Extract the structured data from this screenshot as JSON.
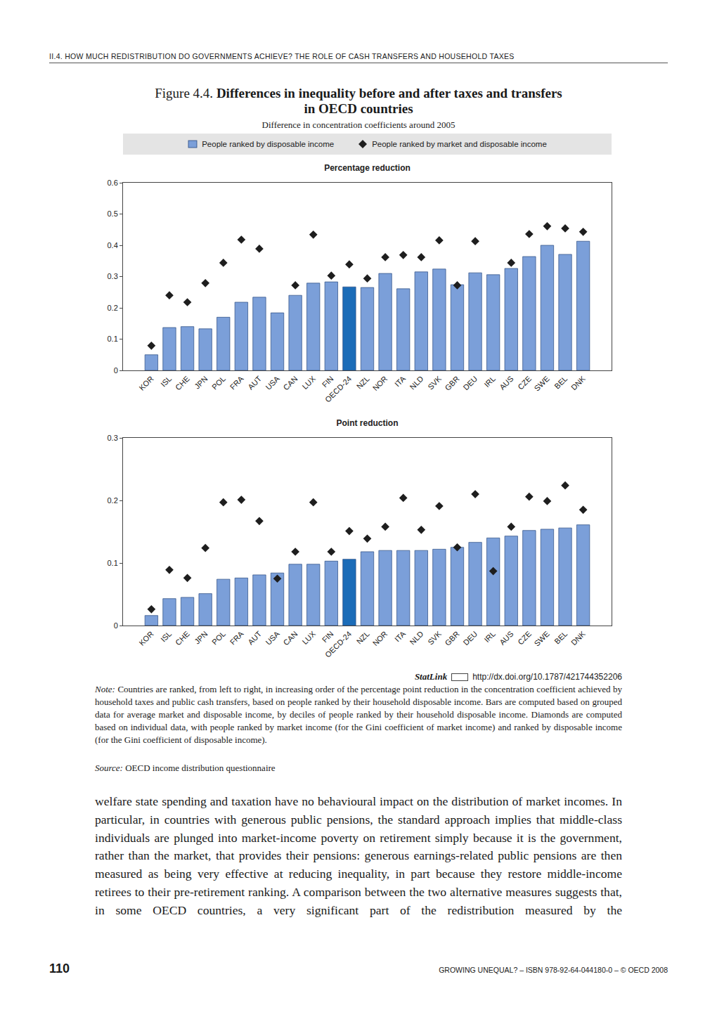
{
  "header": "II.4.   HOW MUCH REDISTRIBUTION DO GOVERNMENTS ACHIEVE? THE ROLE OF CASH TRANSFERS AND HOUSEHOLD TAXES",
  "figure": {
    "number": "Figure 4.4.",
    "title": [
      "Differences in inequality before and after taxes and transfers",
      "in OECD countries"
    ],
    "subtitle": "Difference in concentration coefficients around 2005"
  },
  "chart_data": [
    {
      "type": "bar",
      "title": "Percentage reduction",
      "categories": [
        "KOR",
        "ISL",
        "CHE",
        "JPN",
        "POL",
        "FRA",
        "AUT",
        "USA",
        "CAN",
        "LUX",
        "FIN",
        "OECD-24",
        "NZL",
        "NOR",
        "ITA",
        "NLD",
        "SVK",
        "GBR",
        "DEU",
        "IRL",
        "AUS",
        "CZE",
        "SWE",
        "BEL",
        "DNK"
      ],
      "series": [
        {
          "name": "People ranked by disposable income",
          "type": "bar",
          "values": [
            0.05,
            0.137,
            0.14,
            0.133,
            0.17,
            0.218,
            0.234,
            0.184,
            0.24,
            0.279,
            0.283,
            0.267,
            0.265,
            0.31,
            0.261,
            0.315,
            0.324,
            0.274,
            0.312,
            0.306,
            0.326,
            0.364,
            0.4,
            0.371,
            0.413
          ],
          "colors": [
            "#7b9fd9",
            "#7b9fd9",
            "#7b9fd9",
            "#7b9fd9",
            "#7b9fd9",
            "#7b9fd9",
            "#7b9fd9",
            "#7b9fd9",
            "#7b9fd9",
            "#7b9fd9",
            "#7b9fd9",
            "#1b6cb8",
            "#7b9fd9",
            "#7b9fd9",
            "#7b9fd9",
            "#7b9fd9",
            "#7b9fd9",
            "#7b9fd9",
            "#7b9fd9",
            "#7b9fd9",
            "#7b9fd9",
            "#7b9fd9",
            "#7b9fd9",
            "#7b9fd9",
            "#7b9fd9"
          ]
        },
        {
          "name": "People ranked by market and disposable income",
          "type": "scatter",
          "marker": "diamond",
          "color": "#1e1e1e",
          "values": [
            0.079,
            0.24,
            0.218,
            0.279,
            0.344,
            0.418,
            0.389,
            null,
            0.272,
            0.434,
            0.303,
            0.339,
            0.294,
            0.362,
            0.369,
            0.362,
            0.416,
            0.272,
            0.413,
            null,
            0.344,
            0.436,
            0.461,
            0.454,
            0.443
          ]
        }
      ],
      "ylim": [
        0,
        0.6
      ],
      "yticks": [
        0,
        0.1,
        0.2,
        0.3,
        0.4,
        0.5,
        0.6
      ],
      "grid": false,
      "legend": "top"
    },
    {
      "type": "bar",
      "title": "Point reduction",
      "categories": [
        "KOR",
        "ISL",
        "CHE",
        "JPN",
        "POL",
        "FRA",
        "AUT",
        "USA",
        "CAN",
        "LUX",
        "FIN",
        "OECD-24",
        "NZL",
        "NOR",
        "ITA",
        "NLD",
        "SVK",
        "GBR",
        "DEU",
        "IRL",
        "AUS",
        "CZE",
        "SWE",
        "BEL",
        "DNK"
      ],
      "series": [
        {
          "name": "People ranked by disposable income",
          "type": "bar",
          "values": [
            0.016,
            0.043,
            0.045,
            0.051,
            0.074,
            0.076,
            0.081,
            0.084,
            0.098,
            0.098,
            0.103,
            0.106,
            0.118,
            0.12,
            0.12,
            0.12,
            0.122,
            0.125,
            0.133,
            0.14,
            0.143,
            0.152,
            0.154,
            0.156,
            0.161
          ],
          "colors": [
            "#7b9fd9",
            "#7b9fd9",
            "#7b9fd9",
            "#7b9fd9",
            "#7b9fd9",
            "#7b9fd9",
            "#7b9fd9",
            "#7b9fd9",
            "#7b9fd9",
            "#7b9fd9",
            "#7b9fd9",
            "#1b6cb8",
            "#7b9fd9",
            "#7b9fd9",
            "#7b9fd9",
            "#7b9fd9",
            "#7b9fd9",
            "#7b9fd9",
            "#7b9fd9",
            "#7b9fd9",
            "#7b9fd9",
            "#7b9fd9",
            "#7b9fd9",
            "#7b9fd9",
            "#7b9fd9"
          ]
        },
        {
          "name": "People ranked by market and disposable income",
          "type": "scatter",
          "marker": "diamond",
          "color": "#1e1e1e",
          "values": [
            0.026,
            0.089,
            0.076,
            0.124,
            0.197,
            0.201,
            0.167,
            0.075,
            0.118,
            0.197,
            0.118,
            0.151,
            0.139,
            0.158,
            0.204,
            0.153,
            0.191,
            0.125,
            0.21,
            0.087,
            0.158,
            0.206,
            0.199,
            0.224,
            0.185
          ]
        }
      ],
      "ylim": [
        0,
        0.3
      ],
      "yticks": [
        0,
        0.1,
        0.2,
        0.3
      ],
      "grid": false
    }
  ],
  "statlink": {
    "label": "StatLink",
    "url": "http://dx.doi.org/10.1787/421744352206"
  },
  "note": {
    "label": "Note:",
    "text": "Countries are ranked, from left to right, in increasing order of the percentage point reduction in the concentration coefficient achieved by household taxes and public cash transfers, based on people ranked by their household disposable income. Bars are computed based on grouped data for average market and disposable income, by deciles of people ranked by their household disposable income. Diamonds are computed based on individual data, with people ranked by market income (for the Gini coefficient of market income) and ranked by disposable income (for the Gini coefficient of disposable income)."
  },
  "source": {
    "label": "Source:",
    "text": "OECD income distribution questionnaire"
  },
  "body": "welfare state spending and taxation have no behavioural impact on the distribution of market incomes. In particular, in countries with generous public pensions, the standard approach implies that middle-class individuals are plunged into market-income poverty on retirement simply because it is the government, rather than the market, that provides their pensions: generous earnings-related public pensions are then measured as being very effective at reducing inequality, in part because they restore middle-income retirees to their pre-retirement ranking. A comparison between the two alternative measures suggests that, in some OECD countries, a very significant part of the redistribution measured by the",
  "footer": {
    "page": "110",
    "text": "GROWING UNEQUAL? – ISBN 978-92-64-044180-0 – © OECD 2008"
  }
}
